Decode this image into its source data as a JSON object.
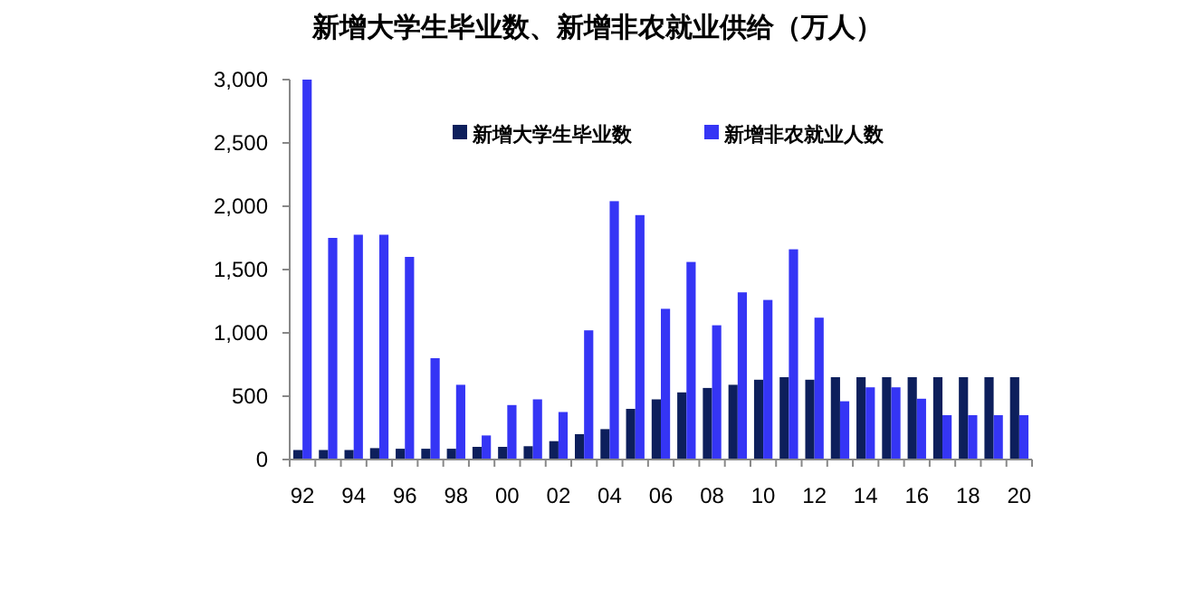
{
  "chart_data": {
    "type": "bar",
    "title": "新增大学生毕业数、新增非农就业供给（万人）",
    "categories": [
      "92",
      null,
      "94",
      null,
      "96",
      null,
      "98",
      null,
      "00",
      null,
      "02",
      null,
      "04",
      null,
      "06",
      null,
      "08",
      null,
      "10",
      null,
      "12",
      null,
      "14",
      null,
      "16",
      null,
      "18",
      null,
      "20"
    ],
    "series": [
      {
        "name": "新增大学生毕业数",
        "color": "#0d1f5c",
        "values": [
          75,
          75,
          75,
          90,
          85,
          85,
          85,
          100,
          100,
          105,
          145,
          200,
          240,
          400,
          475,
          530,
          565,
          590,
          630,
          650,
          630,
          650,
          650,
          650,
          650,
          650,
          650,
          650,
          650
        ]
      },
      {
        "name": "新增非农就业人数",
        "color": "#3535f5",
        "values": [
          3000,
          1750,
          1775,
          1775,
          1600,
          800,
          590,
          190,
          430,
          475,
          375,
          1020,
          2040,
          1930,
          1190,
          1560,
          1060,
          1320,
          1260,
          1660,
          1120,
          460,
          570,
          570,
          480,
          350,
          350,
          350,
          350
        ]
      }
    ],
    "ylim": [
      0,
      3000
    ],
    "yticks": [
      0,
      {
        "value": 500,
        "label": "500"
      },
      {
        "value": 1000,
        "label": "1,000"
      },
      {
        "value": 1500,
        "label": "1,500"
      },
      {
        "value": 2000,
        "label": "2,000"
      },
      {
        "value": 2500,
        "label": "2,500"
      },
      {
        "value": 3000,
        "label": "3,000"
      }
    ],
    "legend": "top",
    "grid": false
  }
}
